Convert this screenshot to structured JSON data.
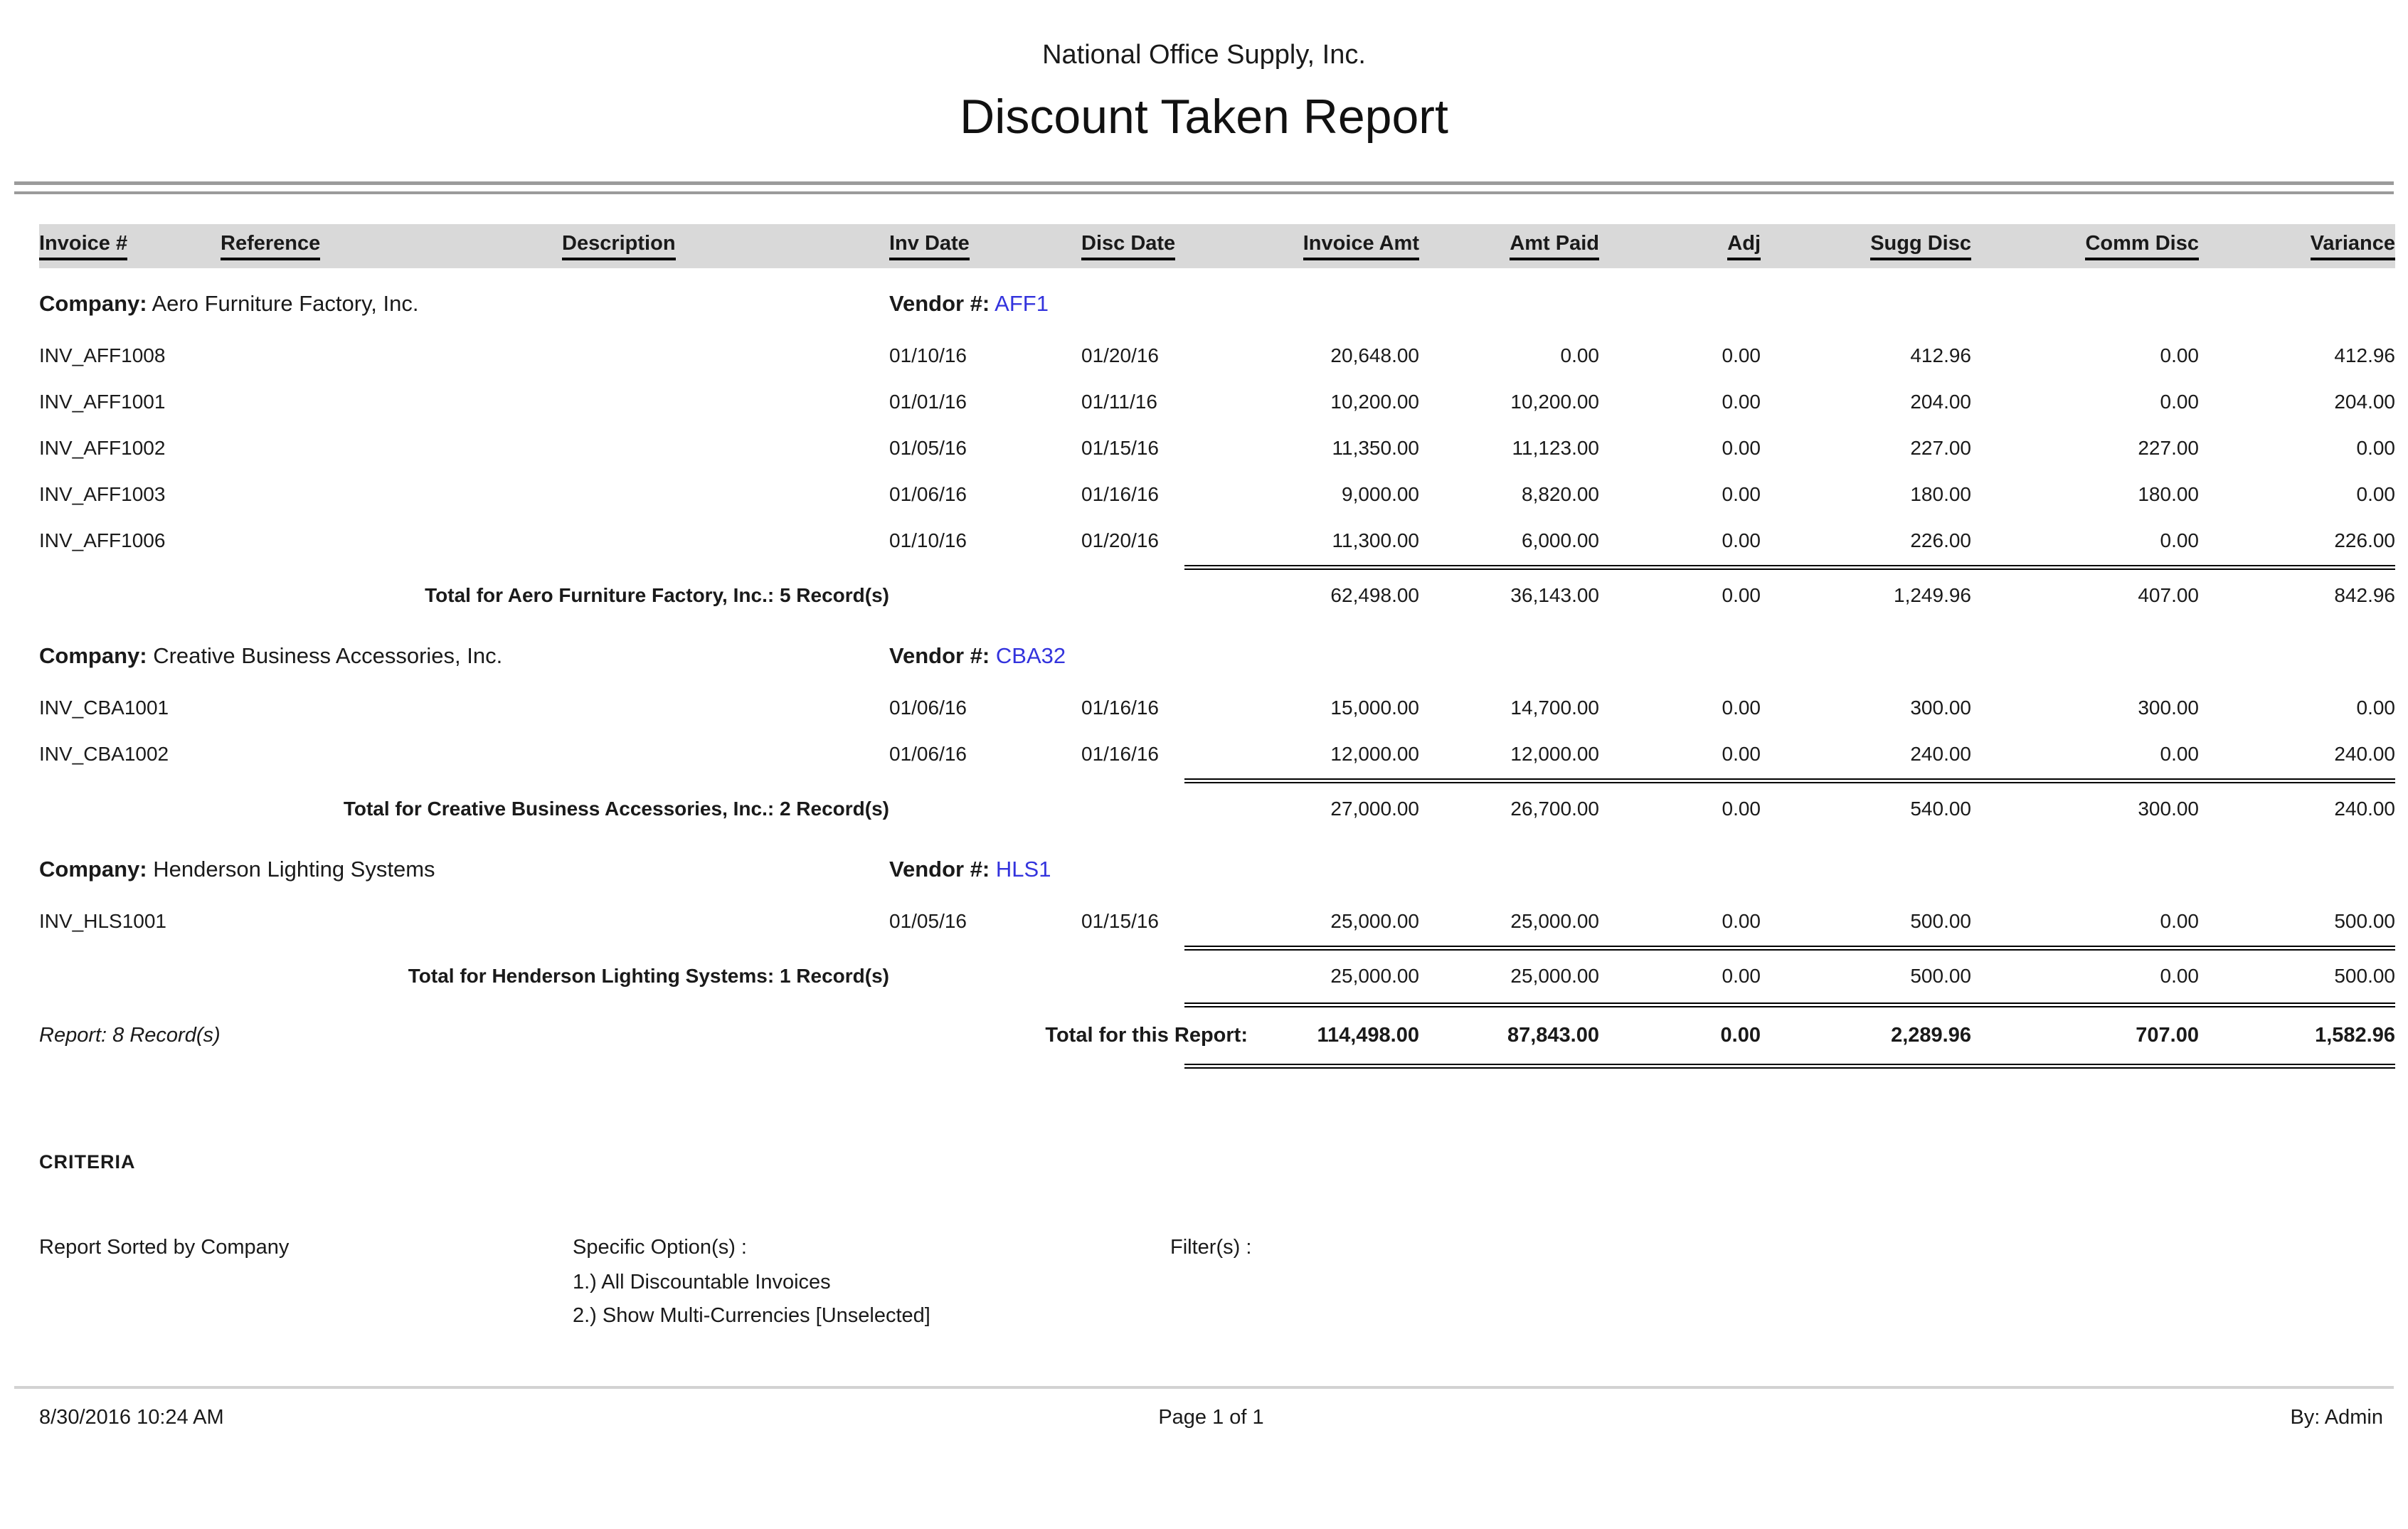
{
  "report": {
    "company_name": "National Office Supply, Inc.",
    "title": "Discount Taken Report"
  },
  "table": {
    "headers": [
      "Invoice #",
      "Reference",
      "Description",
      "Inv Date",
      "Disc Date",
      "Invoice Amt",
      "Amt Paid",
      "Adj",
      "Sugg Disc",
      "Comm Disc",
      "Variance"
    ],
    "company_label": "Company:",
    "vendor_label": "Vendor #:",
    "groups": [
      {
        "company": "Aero Furniture Factory, Inc.",
        "vendor": "AFF1",
        "rows": [
          {
            "invoice": "INV_AFF1008",
            "inv_date": "01/10/16",
            "disc_date": "01/20/16",
            "invoice_amt": "20,648.00",
            "amt_paid": "0.00",
            "adj": "0.00",
            "sugg_disc": "412.96",
            "comm_disc": "0.00",
            "variance": "412.96"
          },
          {
            "invoice": "INV_AFF1001",
            "inv_date": "01/01/16",
            "disc_date": "01/11/16",
            "invoice_amt": "10,200.00",
            "amt_paid": "10,200.00",
            "adj": "0.00",
            "sugg_disc": "204.00",
            "comm_disc": "0.00",
            "variance": "204.00"
          },
          {
            "invoice": "INV_AFF1002",
            "inv_date": "01/05/16",
            "disc_date": "01/15/16",
            "invoice_amt": "11,350.00",
            "amt_paid": "11,123.00",
            "adj": "0.00",
            "sugg_disc": "227.00",
            "comm_disc": "227.00",
            "variance": "0.00"
          },
          {
            "invoice": "INV_AFF1003",
            "inv_date": "01/06/16",
            "disc_date": "01/16/16",
            "invoice_amt": "9,000.00",
            "amt_paid": "8,820.00",
            "adj": "0.00",
            "sugg_disc": "180.00",
            "comm_disc": "180.00",
            "variance": "0.00"
          },
          {
            "invoice": "INV_AFF1006",
            "inv_date": "01/10/16",
            "disc_date": "01/20/16",
            "invoice_amt": "11,300.00",
            "amt_paid": "6,000.00",
            "adj": "0.00",
            "sugg_disc": "226.00",
            "comm_disc": "0.00",
            "variance": "226.00"
          }
        ],
        "total_label": "Total for Aero Furniture Factory, Inc.: 5 Record(s)",
        "totals": {
          "invoice_amt": "62,498.00",
          "amt_paid": "36,143.00",
          "adj": "0.00",
          "sugg_disc": "1,249.96",
          "comm_disc": "407.00",
          "variance": "842.96"
        }
      },
      {
        "company": "Creative Business Accessories, Inc.",
        "vendor": "CBA32",
        "rows": [
          {
            "invoice": "INV_CBA1001",
            "inv_date": "01/06/16",
            "disc_date": "01/16/16",
            "invoice_amt": "15,000.00",
            "amt_paid": "14,700.00",
            "adj": "0.00",
            "sugg_disc": "300.00",
            "comm_disc": "300.00",
            "variance": "0.00"
          },
          {
            "invoice": "INV_CBA1002",
            "inv_date": "01/06/16",
            "disc_date": "01/16/16",
            "invoice_amt": "12,000.00",
            "amt_paid": "12,000.00",
            "adj": "0.00",
            "sugg_disc": "240.00",
            "comm_disc": "0.00",
            "variance": "240.00"
          }
        ],
        "total_label": "Total for Creative Business Accessories, Inc.: 2 Record(s)",
        "totals": {
          "invoice_amt": "27,000.00",
          "amt_paid": "26,700.00",
          "adj": "0.00",
          "sugg_disc": "540.00",
          "comm_disc": "300.00",
          "variance": "240.00"
        }
      },
      {
        "company": "Henderson Lighting Systems",
        "vendor": "HLS1",
        "rows": [
          {
            "invoice": "INV_HLS1001",
            "inv_date": "01/05/16",
            "disc_date": "01/15/16",
            "invoice_amt": "25,000.00",
            "amt_paid": "25,000.00",
            "adj": "0.00",
            "sugg_disc": "500.00",
            "comm_disc": "0.00",
            "variance": "500.00"
          }
        ],
        "total_label": "Total for Henderson Lighting Systems: 1 Record(s)",
        "totals": {
          "invoice_amt": "25,000.00",
          "amt_paid": "25,000.00",
          "adj": "0.00",
          "sugg_disc": "500.00",
          "comm_disc": "0.00",
          "variance": "500.00"
        }
      }
    ],
    "report_summary": {
      "records_label": "Report: 8 Record(s)",
      "total_label": "Total for this Report:",
      "totals": {
        "invoice_amt": "114,498.00",
        "amt_paid": "87,843.00",
        "adj": "0.00",
        "sugg_disc": "2,289.96",
        "comm_disc": "707.00",
        "variance": "1,582.96"
      }
    }
  },
  "criteria": {
    "heading": "CRITERIA",
    "sort": "Report Sorted by Company",
    "options_label": "Specific Option(s) :",
    "options": [
      "1.) All Discountable Invoices",
      "2.) Show Multi-Currencies [Unselected]"
    ],
    "filters_label": "Filter(s) :"
  },
  "footer": {
    "datetime": "8/30/2016 10:24 AM",
    "page": "Page 1 of 1",
    "by": "By: Admin"
  },
  "colors": {
    "vendor_link": "#3333dd",
    "header_bar": "#d9d9d9"
  }
}
